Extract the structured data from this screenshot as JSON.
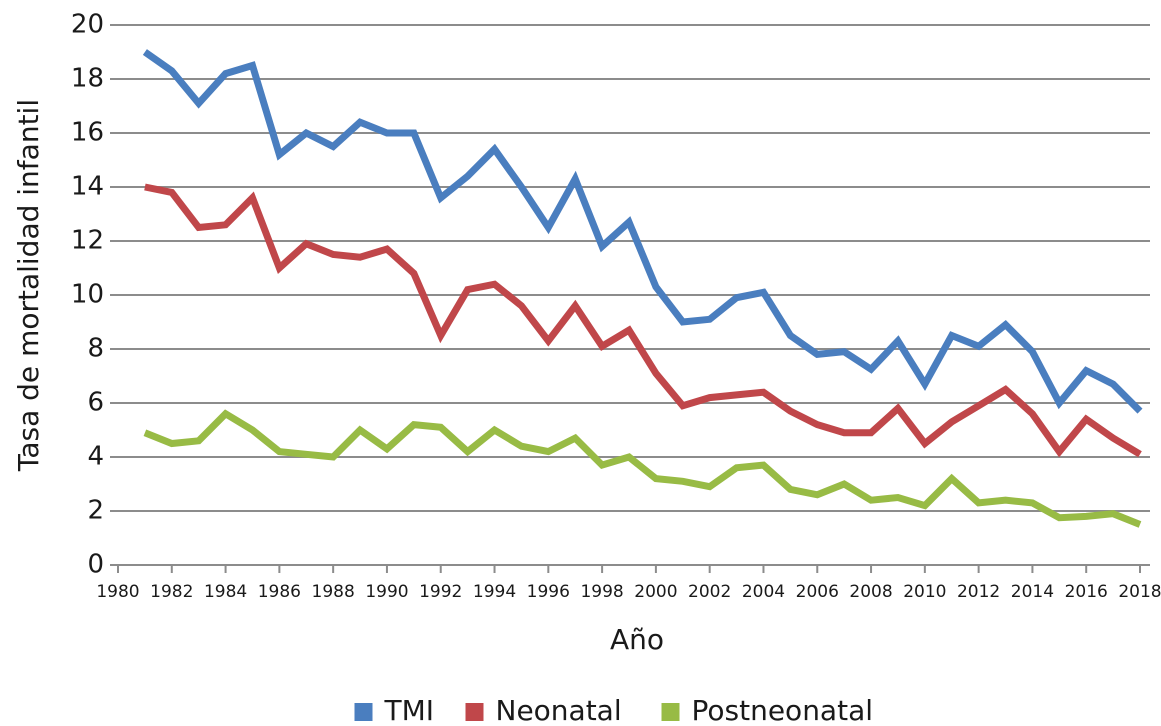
{
  "chart_data": {
    "type": "line",
    "x": [
      1981,
      1982,
      1983,
      1984,
      1985,
      1986,
      1987,
      1988,
      1989,
      1990,
      1991,
      1992,
      1993,
      1994,
      1995,
      1996,
      1997,
      1998,
      1999,
      2000,
      2001,
      2002,
      2003,
      2004,
      2005,
      2006,
      2007,
      2008,
      2009,
      2010,
      2011,
      2012,
      2013,
      2014,
      2015,
      2016,
      2017,
      2018
    ],
    "series": [
      {
        "name": "TMI",
        "color": "#4a7ebf",
        "values": [
          19.0,
          18.3,
          17.1,
          18.2,
          18.5,
          15.2,
          16.0,
          15.5,
          16.4,
          16.0,
          16.0,
          13.6,
          14.4,
          15.4,
          14.0,
          12.5,
          14.3,
          11.8,
          12.7,
          10.3,
          9.0,
          9.1,
          9.9,
          10.1,
          8.5,
          7.8,
          7.9,
          7.25,
          8.3,
          6.7,
          8.5,
          8.1,
          8.9,
          7.9,
          6.0,
          7.2,
          6.7,
          5.7
        ]
      },
      {
        "name": "Neonatal",
        "color": "#c0474a",
        "values": [
          14.0,
          13.8,
          12.5,
          12.6,
          13.6,
          11.0,
          11.9,
          11.5,
          11.4,
          11.7,
          10.8,
          8.5,
          10.2,
          10.4,
          9.6,
          8.3,
          9.6,
          8.1,
          8.7,
          7.1,
          5.9,
          6.2,
          6.3,
          6.4,
          5.7,
          5.2,
          4.9,
          4.9,
          5.8,
          4.5,
          5.3,
          5.9,
          6.5,
          5.6,
          4.2,
          5.4,
          4.7,
          4.1
        ]
      },
      {
        "name": "Postneonatal",
        "color": "#98bb45",
        "values": [
          4.9,
          4.5,
          4.6,
          5.6,
          5.0,
          4.2,
          4.1,
          4.0,
          5.0,
          4.3,
          5.2,
          5.1,
          4.2,
          5.0,
          4.4,
          4.2,
          4.7,
          3.7,
          4.0,
          3.2,
          3.1,
          2.9,
          3.6,
          3.7,
          2.8,
          2.6,
          3.0,
          2.4,
          2.5,
          2.2,
          3.2,
          2.3,
          2.4,
          2.3,
          1.75,
          1.8,
          1.9,
          1.5
        ]
      }
    ],
    "xlabel": "Año",
    "ylabel": "Tasa de mortalidad infantil",
    "xlim": [
      1980,
      2018
    ],
    "xticks": [
      1980,
      1982,
      1984,
      1986,
      1988,
      1990,
      1992,
      1994,
      1996,
      1998,
      2000,
      2002,
      2004,
      2006,
      2008,
      2010,
      2012,
      2014,
      2016,
      2018
    ],
    "ylim": [
      0,
      20
    ],
    "yticks": [
      0,
      2,
      4,
      6,
      8,
      10,
      12,
      14,
      16,
      18,
      20
    ],
    "grid": true,
    "legend": "bottom"
  }
}
